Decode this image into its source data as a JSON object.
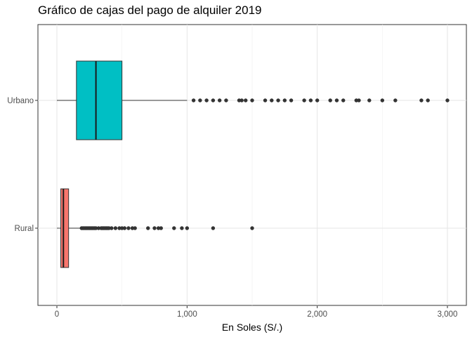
{
  "chart_data": {
    "type": "boxplot",
    "orientation": "horizontal",
    "title": "Gráfico de cajas del pago de alquiler 2019",
    "xlabel": "En Soles (S/.)",
    "ylabel": "",
    "xlim": [
      -150,
      3100
    ],
    "x_ticks": [
      0,
      1000,
      2000,
      3000
    ],
    "x_tick_labels": [
      "0",
      "1,000",
      "2,000",
      "3,000"
    ],
    "grid": true,
    "legend": "none",
    "categories": [
      "Rural",
      "Urbano"
    ],
    "series": [
      {
        "category": "Rural",
        "color": "#F8766D",
        "whisker_low": 0,
        "q1": 30,
        "median": 50,
        "q3": 90,
        "whisker_high": 180,
        "outliers": [
          190,
          200,
          210,
          220,
          230,
          240,
          250,
          260,
          270,
          280,
          290,
          300,
          320,
          340,
          350,
          360,
          370,
          380,
          390,
          400,
          420,
          450,
          480,
          500,
          520,
          550,
          580,
          600,
          700,
          750,
          780,
          800,
          900,
          960,
          1000,
          1200,
          1500
        ]
      },
      {
        "category": "Urbano",
        "color": "#00BFC4",
        "whisker_low": 0,
        "q1": 150,
        "median": 300,
        "q3": 500,
        "whisker_high": 1000,
        "outliers": [
          1050,
          1100,
          1150,
          1200,
          1250,
          1300,
          1400,
          1420,
          1450,
          1500,
          1600,
          1650,
          1700,
          1750,
          1800,
          1900,
          1950,
          2000,
          2100,
          2150,
          2200,
          2300,
          2320,
          2400,
          2500,
          2600,
          2800,
          2850,
          3000
        ]
      }
    ]
  }
}
